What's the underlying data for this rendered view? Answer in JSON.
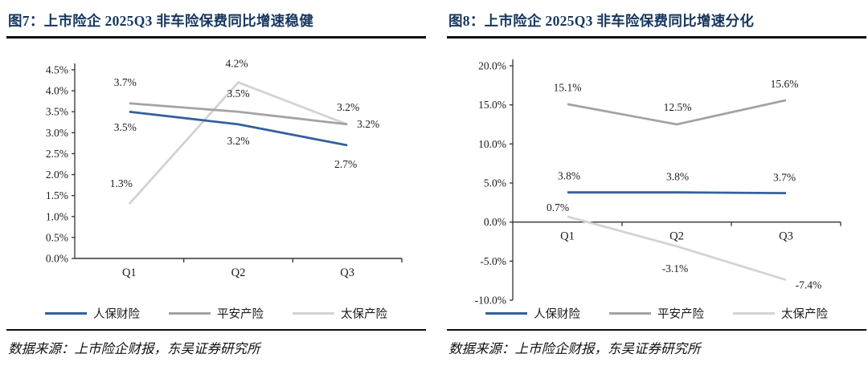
{
  "report": {
    "panels": [
      {
        "title": "图7：上市险企 2025Q3 非车险保费同比增速稳健",
        "source": "数据来源：上市险企财报，东吴证券研究所"
      },
      {
        "title": "图8：上市险企 2025Q3 非车险保费同比增速分化",
        "source": "数据来源：上市险企财报，东吴证券研究所"
      }
    ]
  },
  "colors": {
    "title_navy": "#17365D",
    "axis": "#333333",
    "label_text": "#1a1a1a",
    "rule_black": "#0d0d0d",
    "series_blue": "#33619C",
    "series_gray": "#A3A3A3",
    "series_lightgray": "#D3D3D3"
  },
  "chart_data": [
    {
      "type": "line",
      "title": "上市险企 2025Q3 非车险保费同比增速稳健",
      "categories": [
        "Q1",
        "Q2",
        "Q3"
      ],
      "xlabel": "",
      "ylabel": "",
      "ylim": [
        0,
        4.5
      ],
      "ytick_step": 0.5,
      "ytick_labels": [
        "4.5%",
        "4.0%",
        "3.5%",
        "3.0%",
        "2.5%",
        "2.0%",
        "1.5%",
        "1.0%",
        "0.5%",
        "0.0%"
      ],
      "grid": false,
      "legend_position": "bottom",
      "series": [
        {
          "name": "人保财险",
          "color": "#33619C",
          "values": [
            3.5,
            3.2,
            2.7
          ],
          "data_labels": [
            "3.5%",
            "3.2%",
            "2.7%"
          ],
          "label_offsets": [
            [
              -5,
              24
            ],
            [
              0,
              25
            ],
            [
              -2,
              28
            ]
          ]
        },
        {
          "name": "平安产险",
          "color": "#A3A3A3",
          "values": [
            3.7,
            3.5,
            3.2
          ],
          "data_labels": [
            "3.7%",
            "3.5%",
            "3.2%"
          ],
          "label_offsets": [
            [
              -5,
              -22
            ],
            [
              0,
              -18
            ],
            [
              1,
              -17
            ]
          ]
        },
        {
          "name": "太保产险",
          "color": "#D3D3D3",
          "values": [
            1.3,
            4.2,
            3.2
          ],
          "data_labels": [
            "1.3%",
            "4.2%",
            "3.2%"
          ],
          "label_offsets": [
            [
              -10,
              -21
            ],
            [
              -2,
              -19
            ],
            [
              26,
              4
            ]
          ]
        }
      ]
    },
    {
      "type": "line",
      "title": "上市险企 2025Q3 非车险保费同比增速分化",
      "categories": [
        "Q1",
        "Q2",
        "Q3"
      ],
      "xlabel": "",
      "ylabel": "",
      "ylim": [
        -10,
        20
      ],
      "ytick_step": 5,
      "ytick_labels": [
        "20.0%",
        "15.0%",
        "10.0%",
        "5.0%",
        "0.0%",
        "-5.0%",
        "-10.0%"
      ],
      "grid": false,
      "legend_position": "bottom",
      "series": [
        {
          "name": "人保财险",
          "color": "#33619C",
          "values": [
            3.8,
            3.8,
            3.7
          ],
          "data_labels": [
            "3.8%",
            "3.8%",
            "3.7%"
          ],
          "label_offsets": [
            [
              2,
              -16
            ],
            [
              1,
              -15
            ],
            [
              -2,
              -15
            ]
          ]
        },
        {
          "name": "平安产险",
          "color": "#A3A3A3",
          "values": [
            15.1,
            12.5,
            15.6
          ],
          "data_labels": [
            "15.1%",
            "12.5%",
            "15.6%"
          ],
          "label_offsets": [
            [
              0,
              -16
            ],
            [
              1,
              -17
            ],
            [
              -2,
              -16
            ]
          ]
        },
        {
          "name": "太保产险",
          "color": "#D3D3D3",
          "values": [
            0.7,
            -3.1,
            -7.4
          ],
          "data_labels": [
            "0.7%",
            "-3.1%",
            "-7.4%"
          ],
          "label_offsets": [
            [
              -12,
              -7
            ],
            [
              -2,
              32
            ],
            [
              28,
              11
            ]
          ]
        }
      ]
    }
  ]
}
